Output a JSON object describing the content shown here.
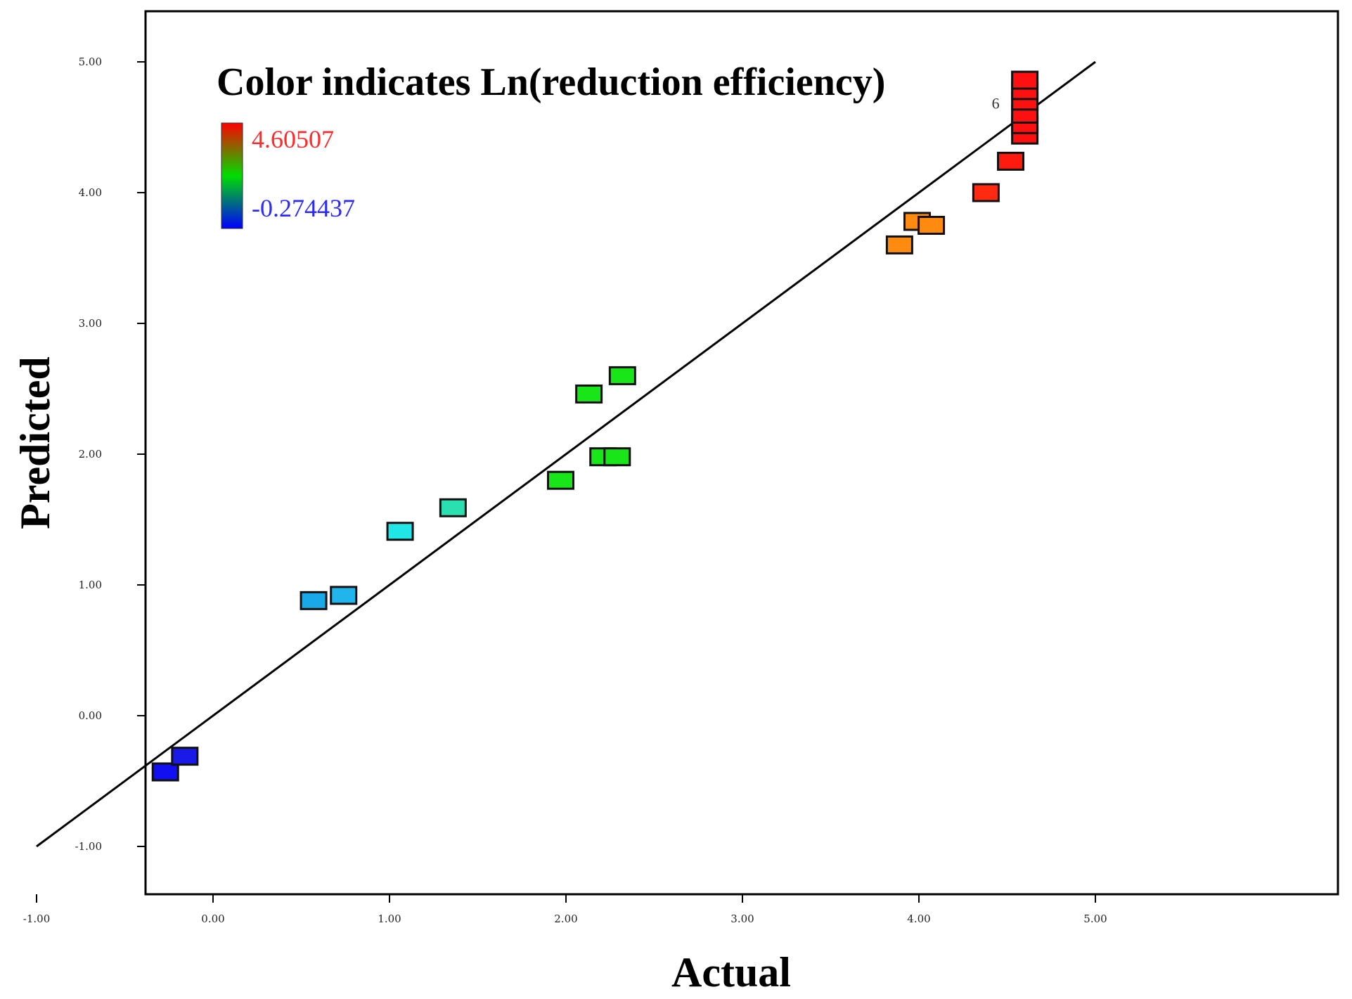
{
  "chart_data": {
    "type": "scatter",
    "xlabel": "Actual",
    "ylabel": "Predicted",
    "xlim": [
      -1.4,
      5.4
    ],
    "ylim": [
      -1.4,
      5.4
    ],
    "x_ticks": [
      "-1.00",
      "0.00",
      "1.00",
      "2.00",
      "3.00",
      "4.00",
      "5.00"
    ],
    "y_ticks": [
      "-1.00",
      "0.00",
      "1.00",
      "2.00",
      "3.00",
      "4.00",
      "5.00"
    ],
    "reference_line": {
      "from": [
        -1,
        -1
      ],
      "to": [
        5,
        5
      ],
      "color": "#000000"
    },
    "legend": {
      "title": "Color indicates Ln(reduction efficiency)",
      "max_label": "4.60507",
      "min_label": "-0.274437",
      "max_color": "#ff2a2a",
      "min_color": "#2a2aff",
      "placement": "top-left"
    },
    "point_label": "6",
    "points": [
      {
        "x": -0.27,
        "y": -0.43,
        "color": "#1010f0"
      },
      {
        "x": -0.16,
        "y": -0.31,
        "color": "#1a1ae8"
      },
      {
        "x": 0.57,
        "y": 0.88,
        "color": "#19a8e8"
      },
      {
        "x": 0.74,
        "y": 0.92,
        "color": "#22b4ec"
      },
      {
        "x": 1.06,
        "y": 1.41,
        "color": "#22e6e6"
      },
      {
        "x": 1.36,
        "y": 1.59,
        "color": "#2ae0b0"
      },
      {
        "x": 1.97,
        "y": 1.8,
        "color": "#19e619"
      },
      {
        "x": 2.13,
        "y": 2.46,
        "color": "#19e619"
      },
      {
        "x": 2.21,
        "y": 1.98,
        "color": "#19e619"
      },
      {
        "x": 2.29,
        "y": 1.98,
        "color": "#19e619"
      },
      {
        "x": 2.32,
        "y": 2.6,
        "color": "#19e619"
      },
      {
        "x": 3.89,
        "y": 3.6,
        "color": "#ff8a10"
      },
      {
        "x": 3.99,
        "y": 3.78,
        "color": "#ff8a10"
      },
      {
        "x": 4.07,
        "y": 3.75,
        "color": "#ff8a10"
      },
      {
        "x": 4.38,
        "y": 4.0,
        "color": "#ff2a10"
      },
      {
        "x": 4.52,
        "y": 4.24,
        "color": "#ff1a10"
      },
      {
        "x": 4.6,
        "y": 4.44,
        "color": "#ff1010"
      },
      {
        "x": 4.6,
        "y": 4.52,
        "color": "#ff1010"
      },
      {
        "x": 4.6,
        "y": 4.6,
        "color": "#ff1010"
      },
      {
        "x": 4.6,
        "y": 4.7,
        "color": "#ff1010"
      },
      {
        "x": 4.6,
        "y": 4.78,
        "color": "#ff1010"
      },
      {
        "x": 4.6,
        "y": 4.86,
        "color": "#ff1010"
      }
    ]
  }
}
